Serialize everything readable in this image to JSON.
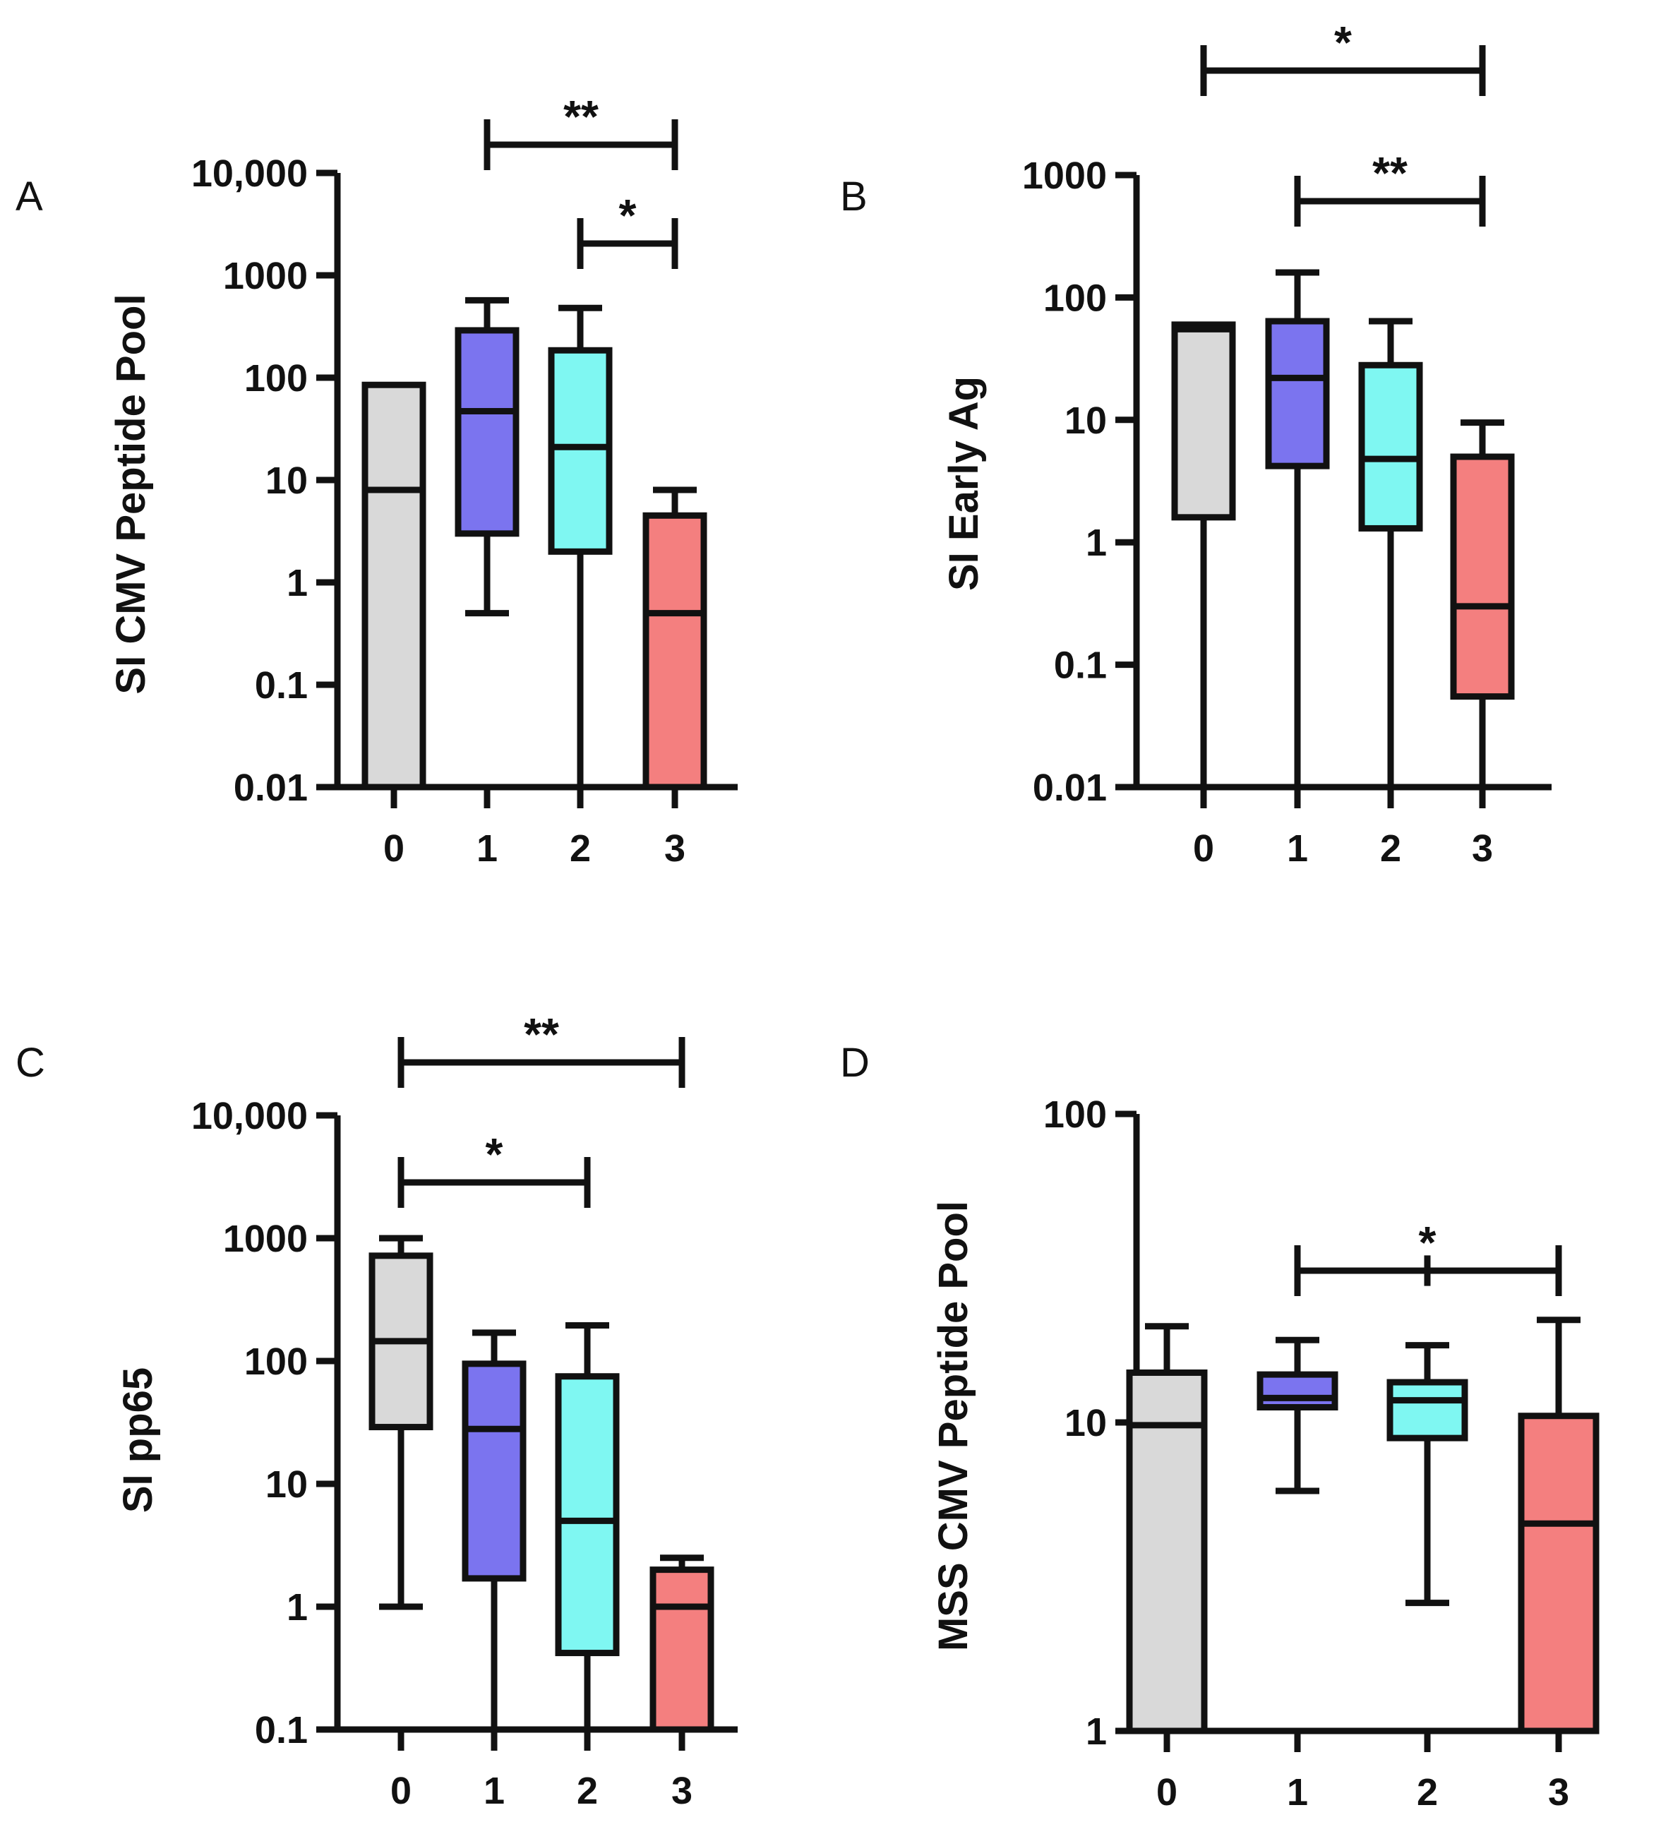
{
  "chart_data": [
    {
      "panel": "A",
      "type": "box",
      "ylabel": "SI CMV Peptide Pool",
      "yscale": "log",
      "ylim": [
        0.01,
        10000
      ],
      "yticks": [
        0.01,
        0.1,
        1,
        10,
        100,
        1000,
        10000
      ],
      "ytick_labels": [
        "0.01",
        "0.1",
        "1",
        "10",
        "100",
        "1000",
        "10,000"
      ],
      "categories": [
        "0",
        "1",
        "2",
        "3"
      ],
      "boxes": [
        {
          "category": "0",
          "color": "#d9d9d9",
          "whisker_low": 0.01,
          "q1": 0.01,
          "median": 8,
          "q3": 85,
          "whisker_high": 85
        },
        {
          "category": "1",
          "color": "#7b74ef",
          "whisker_low": 0.5,
          "q1": 3,
          "median": 47,
          "q3": 290,
          "whisker_high": 570
        },
        {
          "category": "2",
          "color": "#7ff7f2",
          "whisker_low": 0.01,
          "q1": 2,
          "median": 21,
          "q3": 185,
          "whisker_high": 480
        },
        {
          "category": "3",
          "color": "#f47f7f",
          "whisker_low": 0.01,
          "q1": 0.01,
          "median": 0.5,
          "q3": 4.5,
          "whisker_high": 8
        }
      ],
      "significance": [
        {
          "from": "1",
          "to": "3",
          "label": "**"
        },
        {
          "from": "2",
          "to": "3",
          "label": "*"
        }
      ]
    },
    {
      "panel": "B",
      "type": "box",
      "ylabel": "SI Early Ag",
      "yscale": "log",
      "ylim": [
        0.01,
        1000
      ],
      "yticks": [
        0.01,
        0.1,
        1,
        10,
        100,
        1000
      ],
      "ytick_labels": [
        "0.01",
        "0.1",
        "1",
        "10",
        "100",
        "1000"
      ],
      "categories": [
        "0",
        "1",
        "2",
        "3"
      ],
      "boxes": [
        {
          "category": "0",
          "color": "#d9d9d9",
          "whisker_low": 0.01,
          "q1": 1.6,
          "median": 55,
          "q3": 60,
          "whisker_high": 60
        },
        {
          "category": "1",
          "color": "#7b74ef",
          "whisker_low": 0.01,
          "q1": 4.2,
          "median": 22,
          "q3": 64,
          "whisker_high": 160
        },
        {
          "category": "2",
          "color": "#7ff7f2",
          "whisker_low": 0.01,
          "q1": 1.3,
          "median": 4.8,
          "q3": 28,
          "whisker_high": 64
        },
        {
          "category": "3",
          "color": "#f47f7f",
          "whisker_low": 0.01,
          "q1": 0.055,
          "median": 0.3,
          "q3": 5,
          "whisker_high": 9.5
        }
      ],
      "significance": [
        {
          "from": "0",
          "to": "3",
          "label": "*"
        },
        {
          "from": "1",
          "to": "3",
          "label": "**"
        }
      ]
    },
    {
      "panel": "C",
      "type": "box",
      "ylabel": "SI pp65",
      "yscale": "log",
      "ylim": [
        0.1,
        10000
      ],
      "yticks": [
        0.1,
        1,
        10,
        100,
        1000,
        10000
      ],
      "ytick_labels": [
        "0.1",
        "1",
        "10",
        "100",
        "1000",
        "10,000"
      ],
      "categories": [
        "0",
        "1",
        "2",
        "3"
      ],
      "boxes": [
        {
          "category": "0",
          "color": "#d9d9d9",
          "whisker_low": 1,
          "q1": 29,
          "median": 145,
          "q3": 720,
          "whisker_high": 1000
        },
        {
          "category": "1",
          "color": "#7b74ef",
          "whisker_low": 0.1,
          "q1": 1.7,
          "median": 28,
          "q3": 95,
          "whisker_high": 170
        },
        {
          "category": "2",
          "color": "#7ff7f2",
          "whisker_low": 0.1,
          "q1": 0.42,
          "median": 5,
          "q3": 75,
          "whisker_high": 195
        },
        {
          "category": "3",
          "color": "#f47f7f",
          "whisker_low": 0.1,
          "q1": 0.1,
          "median": 1,
          "q3": 2,
          "whisker_high": 2.5
        }
      ],
      "significance": [
        {
          "from": "0",
          "to": "3",
          "label": "**"
        },
        {
          "from": "0",
          "to": "2",
          "label": "*"
        }
      ]
    },
    {
      "panel": "D",
      "type": "box",
      "ylabel": "MSS CMV Peptide Pool",
      "yscale": "log",
      "ylim": [
        1,
        100
      ],
      "yticks": [
        1,
        10,
        100
      ],
      "ytick_labels": [
        "1",
        "10",
        "100"
      ],
      "categories": [
        "0",
        "1",
        "2",
        "3"
      ],
      "boxes": [
        {
          "category": "0",
          "color": "#d9d9d9",
          "whisker_low": 1,
          "q1": 1,
          "median": 9.8,
          "q3": 14.5,
          "whisker_high": 20.5
        },
        {
          "category": "1",
          "color": "#7b74ef",
          "whisker_low": 6,
          "q1": 11.2,
          "median": 12,
          "q3": 14.3,
          "whisker_high": 18.5
        },
        {
          "category": "2",
          "color": "#7ff7f2",
          "whisker_low": 2.6,
          "q1": 8.9,
          "median": 11.8,
          "q3": 13.5,
          "whisker_high": 17.8
        },
        {
          "category": "3",
          "color": "#f47f7f",
          "whisker_low": 1,
          "q1": 1,
          "median": 4.7,
          "q3": 10.5,
          "whisker_high": 21.5
        }
      ],
      "significance": [
        {
          "from": "1",
          "to": "3",
          "label": "*",
          "center_tick": "2"
        }
      ]
    }
  ]
}
